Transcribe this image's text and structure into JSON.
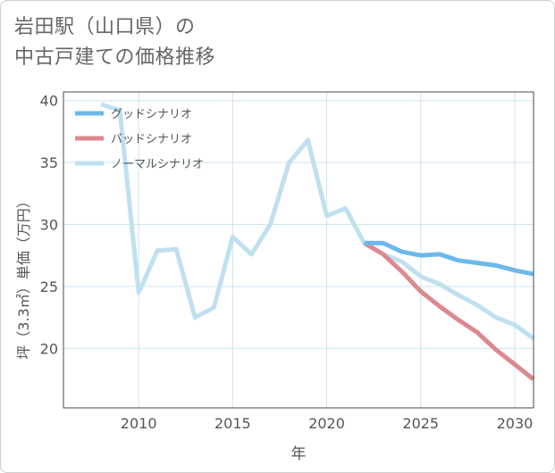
{
  "title_lines": [
    "岩田駅（山口県）の",
    "中古戸建ての価格推移"
  ],
  "colors": {
    "good": "#6cb8ec",
    "bad": "#dd8890",
    "normal": "#bfe0ef",
    "grid": "#cde4ef",
    "axis": "#4a4a4a",
    "tick_text": "#555555"
  },
  "chart_data": {
    "type": "line",
    "title": "岩田駅（山口県）の中古戸建ての価格推移",
    "xlabel": "年",
    "ylabel": "坪（3.3㎡）単価（万円）",
    "xlim": [
      2006,
      2031
    ],
    "ylim": [
      15.2,
      40.7
    ],
    "xticks": [
      2010,
      2015,
      2020,
      2025,
      2030
    ],
    "yticks": [
      20,
      25,
      30,
      35,
      40
    ],
    "legend_position": "top-left",
    "series": [
      {
        "name": "グッドシナリオ",
        "color_key": "good",
        "x": [
          2022,
          2023,
          2024,
          2025,
          2026,
          2027,
          2028,
          2029,
          2030,
          2031
        ],
        "y": [
          28.5,
          28.5,
          27.8,
          27.5,
          27.6,
          27.1,
          26.9,
          26.7,
          26.3,
          26.0
        ]
      },
      {
        "name": "バッドシナリオ",
        "color_key": "bad",
        "x": [
          2022,
          2023,
          2024,
          2025,
          2026,
          2027,
          2028,
          2029,
          2030,
          2031
        ],
        "y": [
          28.5,
          27.6,
          26.2,
          24.6,
          23.4,
          22.3,
          21.3,
          19.9,
          18.7,
          17.5
        ]
      },
      {
        "name": "ノーマルシナリオ",
        "color_key": "normal",
        "x": [
          2008,
          2009,
          2010,
          2011,
          2012,
          2013,
          2014,
          2015,
          2016,
          2017,
          2018,
          2019,
          2020,
          2021,
          2022,
          2023,
          2024,
          2025,
          2026,
          2027,
          2028,
          2029,
          2030,
          2031
        ],
        "y": [
          39.7,
          39.2,
          24.5,
          27.9,
          28.0,
          22.5,
          23.3,
          29.0,
          27.6,
          30.0,
          35.0,
          36.8,
          30.7,
          31.3,
          28.5,
          27.6,
          27.0,
          25.8,
          25.2,
          24.3,
          23.5,
          22.5,
          21.9,
          20.8
        ]
      }
    ]
  }
}
